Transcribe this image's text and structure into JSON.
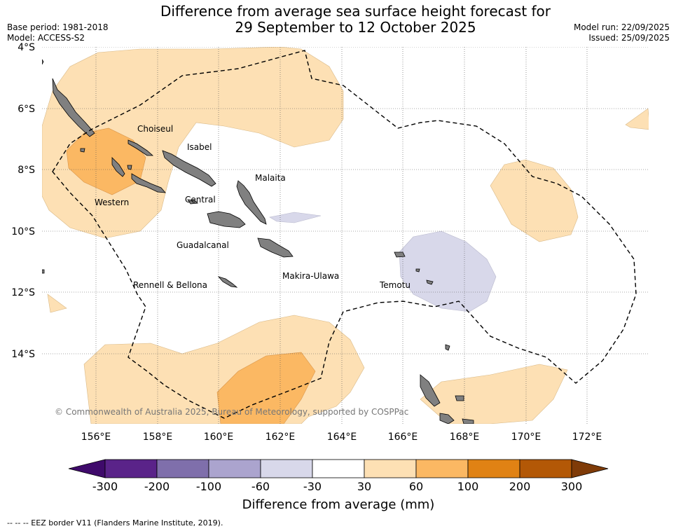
{
  "header": {
    "title_line1": "Difference from average sea surface height forecast for",
    "title_line2": "29 September to 12 October 2025",
    "base_period": "Base period: 1981-2018",
    "model": "Model: ACCESS-S2",
    "model_run": "Model run: 22/09/2025",
    "issued": "Issued: 25/09/2025"
  },
  "map": {
    "lat_ticks": [
      "4°S",
      "6°S",
      "8°S",
      "10°S",
      "12°S",
      "14°S"
    ],
    "lon_ticks": [
      "156°E",
      "158°E",
      "160°E",
      "162°E",
      "164°E",
      "166°E",
      "168°E",
      "170°E",
      "172°E"
    ],
    "places": [
      "Choiseul",
      "Isabel",
      "Malaita",
      "Western",
      "Central",
      "Guadalcanal",
      "Makira-Ulawa",
      "Rennell & Bellona",
      "Temotu"
    ],
    "copyright": "© Commonwealth of Australia 2025, Bureau of Meteorology, supported by COSPPac",
    "colors": {
      "land": "#808080",
      "pos_30_60": "#fde0b4",
      "pos_60_100": "#fbb863",
      "neg_30_60": "#d8d8ea"
    }
  },
  "colorbar": {
    "ticks": [
      "-300",
      "-200",
      "-100",
      "-60",
      "-30",
      "30",
      "60",
      "100",
      "200",
      "300"
    ],
    "label": "Difference from average (mm)",
    "colors": [
      "#3f0a6b",
      "#5a2389",
      "#7f6fab",
      "#aba4ce",
      "#d8d8ea",
      "#ffffff",
      "#fde0b4",
      "#fbb863",
      "#e08214",
      "#b35806",
      "#7f3b08"
    ]
  },
  "legend": {
    "eez": "--  --  -- EEZ border V11 (Flanders Marine Institute, 2019)."
  }
}
